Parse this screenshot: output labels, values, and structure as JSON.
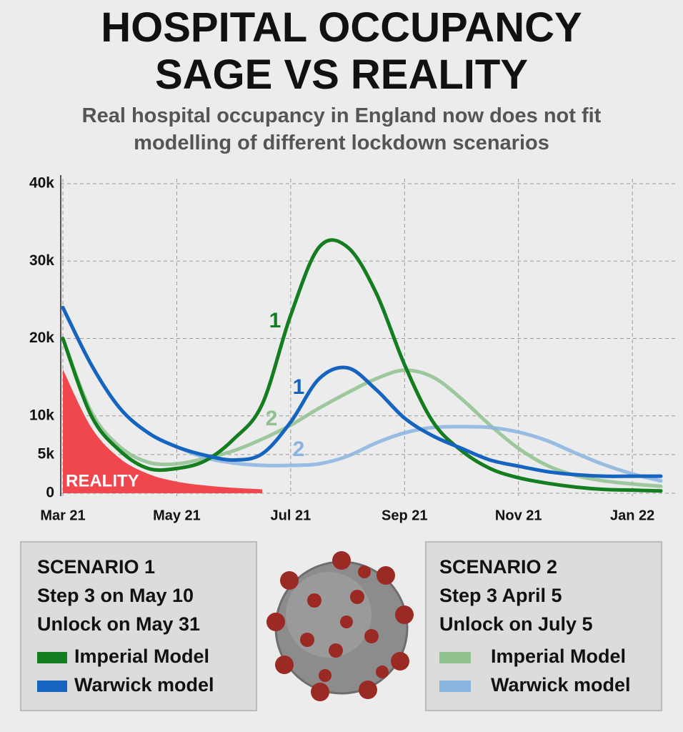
{
  "chart_data": {
    "type": "line",
    "title": "HOSPITAL OCCUPANCY SAGE VS REALITY",
    "subtitle": "Real hospital occupancy in England now does not fit modelling of different lockdown scenarios",
    "categories": [
      "Mar 21",
      null,
      null,
      null,
      "May 21",
      null,
      null,
      null,
      "Jul 21",
      null,
      null,
      null,
      "Sep 21",
      null,
      null,
      null,
      "Nov 21",
      null,
      null,
      null,
      "Jan 22",
      null
    ],
    "series": [
      {
        "name": "Imperial Model",
        "color": "#137d1f",
        "values": [
          20000,
          10000,
          5500,
          3200,
          3200,
          4200,
          7000,
          11500,
          23000,
          31800,
          31800,
          25900,
          16600,
          9200,
          5500,
          3200,
          2000,
          1300,
          800,
          500,
          400,
          300
        ]
      },
      {
        "name": "Warwick model",
        "color": "#1565c0",
        "values": [
          24000,
          16600,
          11000,
          7800,
          6000,
          4900,
          4300,
          5100,
          9200,
          14800,
          16200,
          13400,
          9700,
          7400,
          5800,
          4300,
          3500,
          2800,
          2400,
          2200,
          2200,
          2200
        ]
      },
      {
        "name": "Imperial Model",
        "color": "#8fc28f",
        "values": [
          20000,
          10500,
          6000,
          4000,
          3800,
          4500,
          5500,
          7000,
          8800,
          11000,
          13000,
          14800,
          15900,
          15000,
          12200,
          8800,
          5800,
          3600,
          2300,
          1600,
          1200,
          900
        ]
      },
      {
        "name": "Warwick model",
        "color": "#8ab4e0",
        "values": [
          24000,
          16600,
          11000,
          7800,
          6000,
          4600,
          3900,
          3600,
          3600,
          3800,
          4800,
          6500,
          7800,
          8500,
          8600,
          8500,
          7900,
          6800,
          5200,
          3700,
          2500,
          1600
        ]
      },
      {
        "name": "REALITY",
        "color": "#f0474f",
        "style": "area",
        "values": [
          16000,
          8500,
          4500,
          2500,
          1500,
          1000,
          700,
          500,
          null,
          null,
          null,
          null,
          null,
          null,
          null,
          null,
          null,
          null,
          null,
          null,
          null,
          null
        ]
      }
    ],
    "ylim": [
      0,
      40000
    ],
    "yticks": [
      0,
      {
        "value": 5000,
        "label": "5k"
      },
      {
        "value": 10000,
        "label": "10k"
      },
      {
        "value": 20000,
        "label": "20k"
      },
      {
        "value": 30000,
        "label": "30k"
      },
      {
        "value": 40000,
        "label": "40k"
      }
    ],
    "grid": true,
    "annotations": [
      "1",
      "1",
      "2",
      "2"
    ]
  },
  "scenarios": [
    {
      "title": "SCENARIO 1",
      "lines": [
        "Step 3 on May 10",
        "Unlock on May 31"
      ]
    },
    {
      "title": "SCENARIO 2",
      "lines": [
        "Step 3 April 5",
        "Unlock on July 5"
      ]
    }
  ]
}
